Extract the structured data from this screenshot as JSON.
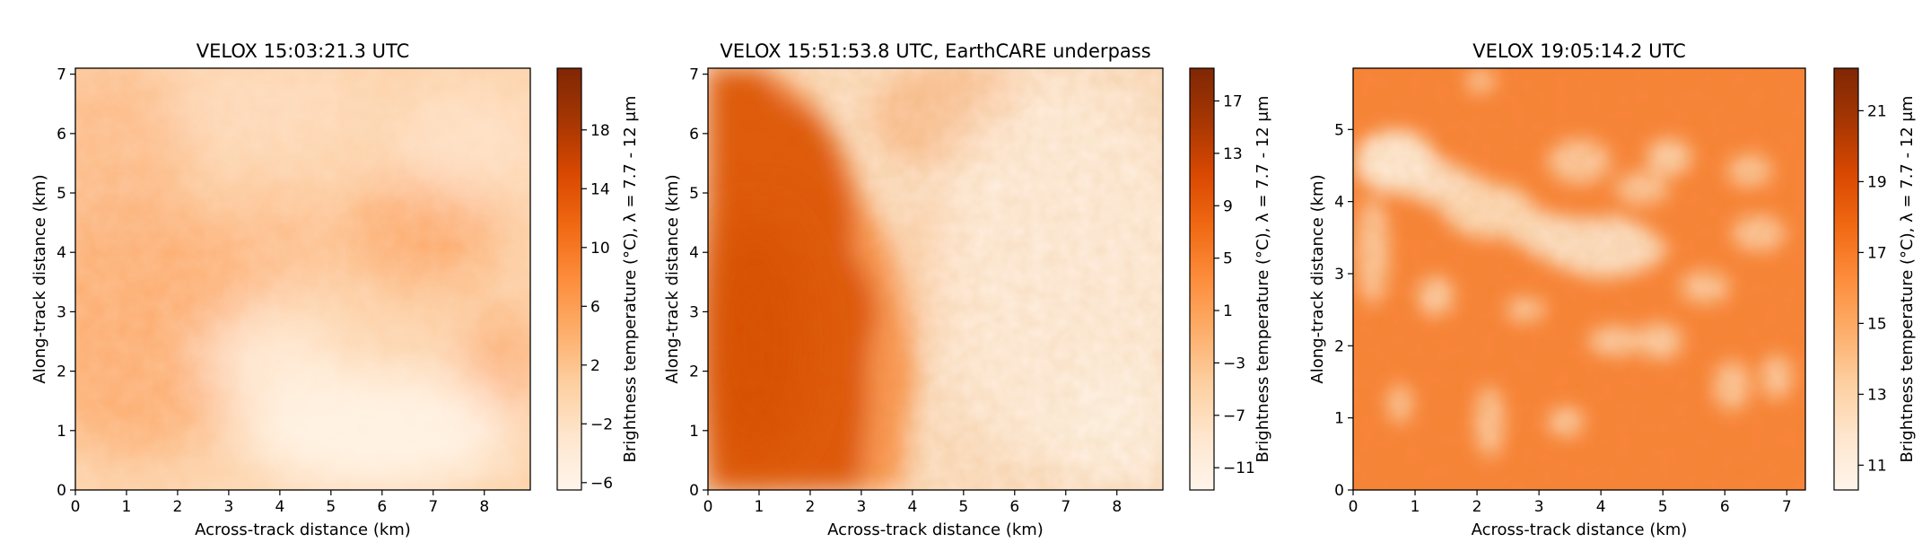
{
  "colors": {
    "cmap_low": "#fff5eb",
    "cmap_mid": "#fd8d3c",
    "cmap_high": "#7f2704",
    "frame": "#000000"
  },
  "chart_data": [
    {
      "type": "heatmap",
      "title": "VELOX 15:03:21.3 UTC",
      "xlabel": "Across-track distance (km)",
      "ylabel": "Along-track distance (km)",
      "xlim": [
        0,
        8.9
      ],
      "ylim": [
        0,
        7.1
      ],
      "xticks": [
        0,
        1,
        2,
        3,
        4,
        5,
        6,
        7,
        8
      ],
      "yticks": [
        0,
        1,
        2,
        3,
        4,
        5,
        6,
        7
      ],
      "colorbar": {
        "label": "Brightness temperature (°C), λ = 7.7 - 12 μm",
        "range": [
          -6.5,
          22.2
        ],
        "ticks": [
          -6,
          -2,
          2,
          6,
          10,
          14,
          18
        ]
      },
      "value_range": [
        -5,
        9
      ],
      "pattern": "warmer patches on left and upper-right, cooler lower-right"
    },
    {
      "type": "heatmap",
      "title": "VELOX 15:51:53.8 UTC, EarthCARE underpass",
      "xlabel": "Across-track distance (km)",
      "ylabel": "Along-track distance (km)",
      "xlim": [
        0,
        8.9
      ],
      "ylim": [
        0,
        7.1
      ],
      "xticks": [
        0,
        1,
        2,
        3,
        4,
        5,
        6,
        7,
        8
      ],
      "yticks": [
        0,
        1,
        2,
        3,
        4,
        5,
        6,
        7
      ],
      "colorbar": {
        "label": "Brightness temperature (°C), λ = 7.7 - 12 μm",
        "range": [
          -12.7,
          19.5
        ],
        "ticks": [
          -11,
          -7,
          -3,
          1,
          5,
          9,
          13,
          17
        ]
      },
      "value_range": [
        -10,
        13
      ],
      "pattern": "warm left region with cloud edge near x = 2.5 to 4 km, cold right"
    },
    {
      "type": "heatmap",
      "title": "VELOX 19:05:14.2 UTC",
      "xlabel": "Across-track distance (km)",
      "ylabel": "Along-track distance (km)",
      "xlim": [
        0,
        7.3
      ],
      "ylim": [
        0,
        5.85
      ],
      "xticks": [
        0,
        1,
        2,
        3,
        4,
        5,
        6,
        7
      ],
      "yticks": [
        0,
        1,
        2,
        3,
        4,
        5
      ],
      "colorbar": {
        "label": "Brightness temperature (°C), λ = 7.7 - 12 μm",
        "range": [
          10.3,
          22.2
        ],
        "ticks": [
          11,
          13,
          15,
          17,
          19,
          21
        ]
      },
      "value_range": [
        12,
        17.5
      ],
      "pattern": "mostly warm with scattered cool cloud patches, larger diagonal band upper-left"
    }
  ]
}
